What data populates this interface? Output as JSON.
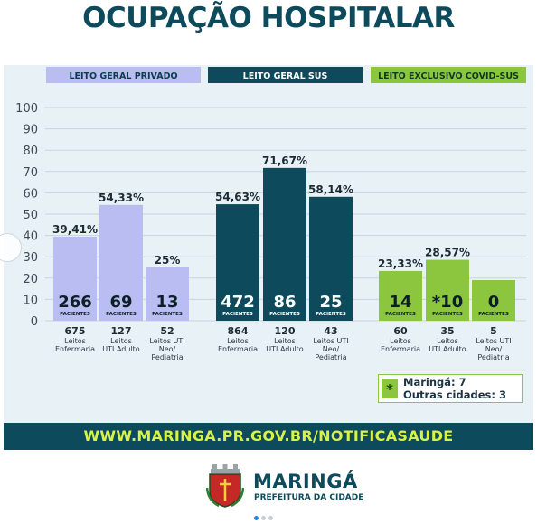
{
  "title": "OCUPAÇÃO HOSPITALAR",
  "footer": {
    "url": "WWW.MARINGA.PR.GOV.BR/NOTIFICASAUDE"
  },
  "logo": {
    "name": "MARINGÁ",
    "subtitle": "PREFEITURA DA CIDADE"
  },
  "legend": {
    "line1": "Maringá: 7",
    "line2": "Outras cidades: 3",
    "mark": "*"
  },
  "colors": {
    "privado": "#b9bdf2",
    "privado_header_text": "#0d3b4d",
    "sus": "#0d4a5c",
    "covid": "#8cc63f",
    "covid_header_text": "#0d3b1e",
    "footer_url": "#d9f24a",
    "title": "#0d4a5c"
  },
  "chart_data": {
    "type": "bar",
    "ylim": [
      0,
      100
    ],
    "yticks": [
      0,
      10,
      20,
      30,
      40,
      50,
      60,
      70,
      80,
      90,
      100
    ],
    "grid": true,
    "groups": [
      {
        "name": "LEITO GERAL PRIVADO",
        "color_key": "privado",
        "bars": [
          {
            "value": 39.41,
            "pct_label": "39,41%",
            "count": "266",
            "unit": "PACIENTES",
            "beds": "675",
            "type_lines": [
              "Leitos",
              "Enfermaria"
            ]
          },
          {
            "value": 54.33,
            "pct_label": "54,33%",
            "count": "69",
            "unit": "PACIENTES",
            "beds": "127",
            "type_lines": [
              "Leitos",
              "UTI Adulto"
            ]
          },
          {
            "value": 25,
            "pct_label": "25%",
            "count": "13",
            "unit": "PACIENTES",
            "beds": "52",
            "type_lines": [
              "Leitos UTI",
              "Neo/",
              "Pediatria"
            ]
          }
        ]
      },
      {
        "name": "LEITO GERAL SUS",
        "color_key": "sus",
        "bars": [
          {
            "value": 54.63,
            "pct_label": "54,63%",
            "count": "472",
            "unit": "PACIENTES",
            "beds": "864",
            "type_lines": [
              "Leitos",
              "Enfermaria"
            ]
          },
          {
            "value": 71.67,
            "pct_label": "71,67%",
            "count": "86",
            "unit": "PACIENTES",
            "beds": "120",
            "type_lines": [
              "Leitos",
              "UTI Adulto"
            ]
          },
          {
            "value": 58.14,
            "pct_label": "58,14%",
            "count": "25",
            "unit": "PACIENTES",
            "beds": "43",
            "type_lines": [
              "Leitos UTI",
              "Neo/",
              "Pediatria"
            ]
          }
        ]
      },
      {
        "name": "LEITO EXCLUSIVO COVID-SUS",
        "color_key": "covid",
        "bars": [
          {
            "value": 23.33,
            "pct_label": "23,33%",
            "count": "14",
            "unit": "PACIENTES",
            "beds": "60",
            "type_lines": [
              "Leitos",
              "Enfermaria"
            ]
          },
          {
            "value": 28.57,
            "pct_label": "28,57%",
            "count": "*10",
            "unit": "PACIENTES",
            "beds": "35",
            "type_lines": [
              "Leitos",
              "UTI Adulto"
            ]
          },
          {
            "value": 0,
            "pct_label": "",
            "count": "0",
            "unit": "PACIENTES",
            "beds": "5",
            "type_lines": [
              "Leitos UTI",
              "Neo/",
              "Pediatria"
            ]
          }
        ]
      }
    ]
  }
}
